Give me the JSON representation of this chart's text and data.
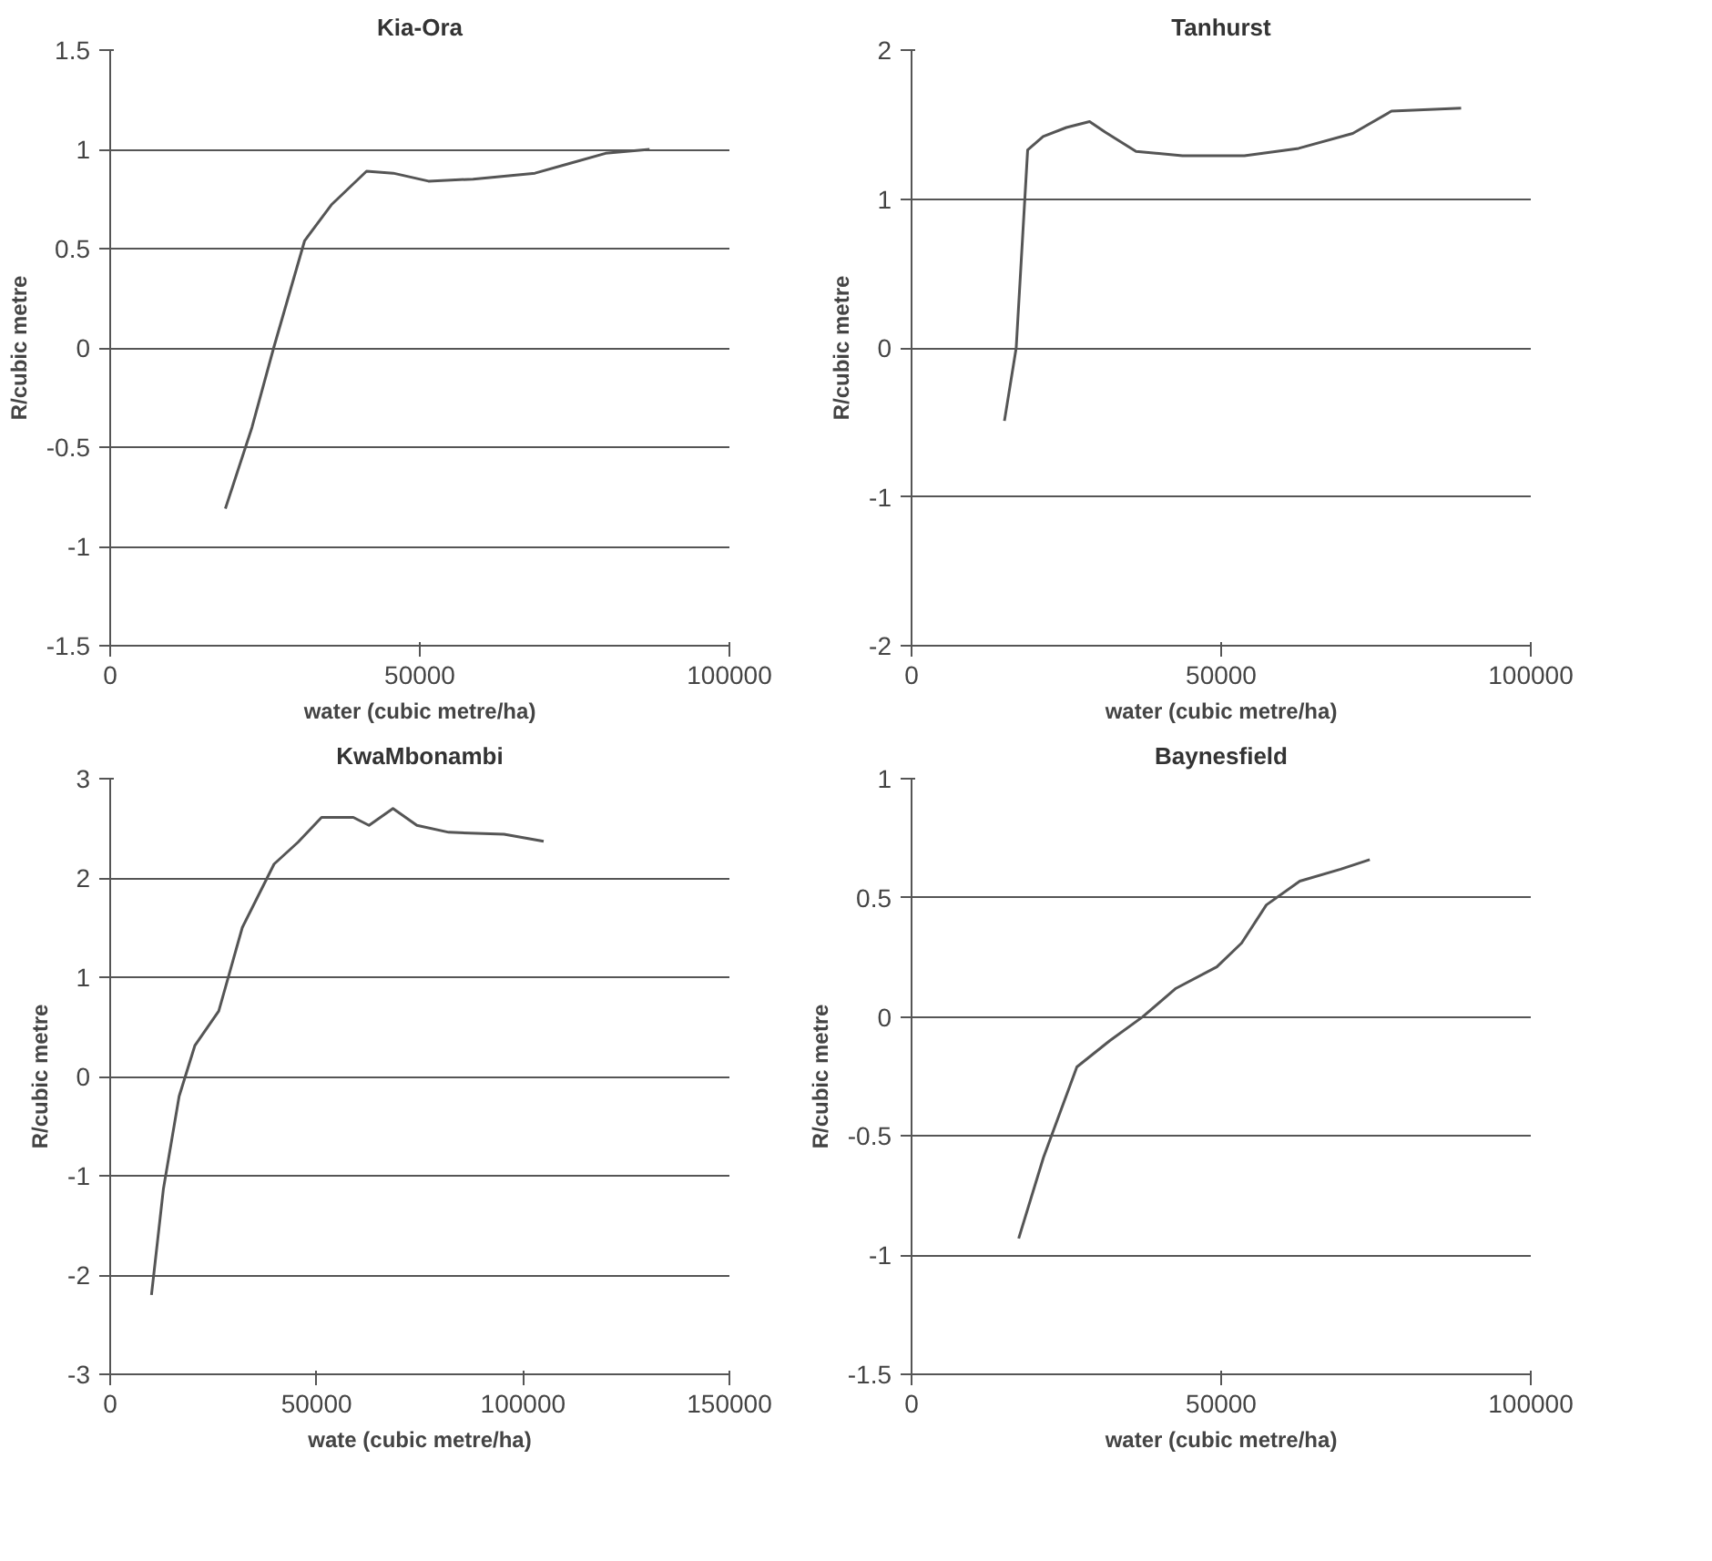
{
  "chart_data": [
    {
      "type": "line",
      "title": "Kia-Ora",
      "xlabel": "water (cubic metre/ha)",
      "ylabel": "R/cubic metre",
      "xlim": [
        0,
        100000
      ],
      "xticks": [
        0,
        50000,
        100000
      ],
      "ylim": [
        -1.5,
        1.5
      ],
      "yticks": [
        -1.5,
        -1,
        -0.5,
        0,
        0.5,
        1,
        1.5
      ],
      "grid": "y",
      "series": [
        {
          "color": "#555555",
          "x": [
            18600,
            22900,
            26400,
            31400,
            35700,
            41400,
            45700,
            51400,
            58600,
            68600,
            74300,
            80000,
            87100
          ],
          "values": [
            -0.81,
            -0.4,
            0,
            0.54,
            0.72,
            0.89,
            0.88,
            0.84,
            0.85,
            0.88,
            0.93,
            0.98,
            1.0
          ]
        }
      ]
    },
    {
      "type": "line",
      "title": "Tanhurst",
      "xlabel": "water (cubic metre/ha)",
      "ylabel": "R/cubic metre",
      "xlim": [
        0,
        100000
      ],
      "xticks": [
        0,
        50000,
        100000
      ],
      "ylim": [
        -2,
        2
      ],
      "yticks": [
        -2,
        -1,
        0,
        1,
        2
      ],
      "grid": "y",
      "series": [
        {
          "color": "#555555",
          "x": [
            15000,
            16900,
            18750,
            21250,
            25000,
            28750,
            31250,
            36250,
            43750,
            53750,
            62500,
            71250,
            77500,
            88750
          ],
          "values": [
            -0.49,
            0,
            1.33,
            1.42,
            1.48,
            1.52,
            1.45,
            1.32,
            1.29,
            1.29,
            1.34,
            1.44,
            1.59,
            1.61
          ]
        }
      ]
    },
    {
      "type": "line",
      "title": "KwaMbonambi",
      "xlabel": "wate (cubic metre/ha)",
      "ylabel": "R/cubic metre",
      "xlim": [
        0,
        150000
      ],
      "xticks": [
        0,
        50000,
        100000,
        150000
      ],
      "ylim": [
        -3,
        3
      ],
      "yticks": [
        -3,
        -2,
        -1,
        0,
        1,
        2,
        3
      ],
      "grid": "y",
      "series": [
        {
          "color": "#555555",
          "x": [
            10000,
            12900,
            16700,
            20500,
            26300,
            32000,
            39700,
            45500,
            51200,
            58900,
            62700,
            68500,
            74300,
            82000,
            95400,
            105000
          ],
          "values": [
            -2.2,
            -1.13,
            -0.2,
            0.31,
            0.66,
            1.5,
            2.14,
            2.36,
            2.61,
            2.61,
            2.53,
            2.7,
            2.53,
            2.46,
            2.44,
            2.37
          ]
        }
      ]
    },
    {
      "type": "line",
      "title": "Baynesfield",
      "xlabel": "water (cubic metre/ha)",
      "ylabel": "R/cubic metre",
      "xlim": [
        0,
        100000
      ],
      "xticks": [
        0,
        50000,
        100000
      ],
      "ylim": [
        -1.5,
        1
      ],
      "yticks": [
        -1.5,
        -1,
        -0.5,
        0,
        0.5,
        1
      ],
      "grid": "y",
      "series": [
        {
          "color": "#555555",
          "x": [
            17300,
            21300,
            26700,
            32000,
            37300,
            42700,
            49300,
            53300,
            57300,
            62700,
            69300,
            74000
          ],
          "values": [
            -0.93,
            -0.59,
            -0.21,
            -0.1,
            0,
            0.12,
            0.21,
            0.31,
            0.47,
            0.57,
            0.62,
            0.66
          ]
        }
      ]
    }
  ]
}
